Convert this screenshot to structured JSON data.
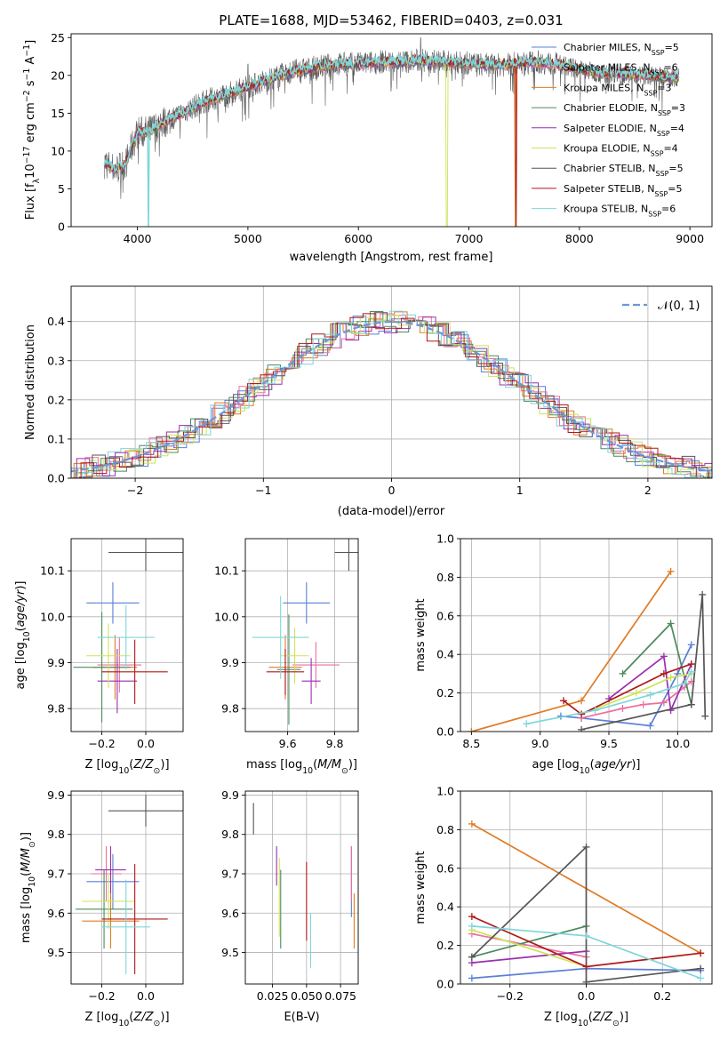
{
  "title": "PLATE=1688, MJD=53462, FIBERID=0403, z=0.031",
  "colors": {
    "chabrier_miles": "#5b7fd6",
    "salpeter_miles": "#ee6e9f",
    "kroupa_miles": "#e07b24",
    "chabrier_elodie": "#4a8b5c",
    "salpeter_elodie": "#9a2fb0",
    "kroupa_elodie": "#cde35a",
    "chabrier_stelib": "#555555",
    "salpeter_stelib": "#b01818",
    "kroupa_stelib": "#7fd6da",
    "normal": "#6a98d6"
  },
  "chart_data": [
    {
      "id": "spectrum",
      "type": "line",
      "title": "PLATE=1688, MJD=53462, FIBERID=0403, z=0.031",
      "xlabel": "wavelength [Angstrom, rest frame]",
      "ylabel": "Flux [f",
      "xlim": [
        3400,
        9200
      ],
      "ylim": [
        0,
        25.5
      ],
      "xticks": [
        4000,
        5000,
        6000,
        7000,
        8000,
        9000
      ],
      "yticks": [
        0,
        5,
        10,
        15,
        20,
        25
      ],
      "legend_position": "top-right",
      "legend": [
        {
          "name": "Chabrier MILES, N",
          "sub": "SSP",
          "val": "=5",
          "color": "#5b7fd6"
        },
        {
          "name": "Salpeter MILES, N",
          "sub": "SSP",
          "val": "=6",
          "color": "#ee6e9f"
        },
        {
          "name": "Kroupa MILES, N",
          "sub": "SSP",
          "val": "=3",
          "color": "#e07b24"
        },
        {
          "name": "Chabrier ELODIE, N",
          "sub": "SSP",
          "val": "=3",
          "color": "#4a8b5c"
        },
        {
          "name": "Salpeter ELODIE, N",
          "sub": "SSP",
          "val": "=4",
          "color": "#9a2fb0"
        },
        {
          "name": "Kroupa ELODIE, N",
          "sub": "SSP",
          "val": "=4",
          "color": "#cde35a"
        },
        {
          "name": "Chabrier STELIB, N",
          "sub": "SSP",
          "val": "=5",
          "color": "#555555"
        },
        {
          "name": "Salpeter STELIB, N",
          "sub": "SSP",
          "val": "=5",
          "color": "#b01818"
        },
        {
          "name": "Kroupa STELIB, N",
          "sub": "SSP",
          "val": "=6",
          "color": "#7fd6da"
        }
      ],
      "continuum": {
        "x": [
          3700,
          3800,
          3900,
          4000,
          4100,
          4200,
          4400,
          4600,
          4800,
          5000,
          5200,
          5400,
          5600,
          5800,
          6000,
          6200,
          6400,
          6600,
          6800,
          7000,
          7200,
          7400,
          7600,
          7800,
          8000,
          8200,
          8400,
          8600,
          8800
        ],
        "y": [
          8.5,
          7.5,
          8.5,
          12.5,
          12.5,
          13.5,
          15,
          16.5,
          17.5,
          18.5,
          19.5,
          20.5,
          21,
          21.5,
          21.5,
          21.8,
          21.8,
          22,
          21.7,
          21.6,
          21.3,
          21.5,
          21.8,
          21.5,
          20.8,
          20.3,
          20.3,
          20,
          19.7
        ]
      }
    },
    {
      "id": "residuals",
      "type": "step",
      "xlabel": "(data-model)/error",
      "ylabel": "Normed distribution",
      "xlim": [
        -2.5,
        2.5
      ],
      "ylim": [
        0,
        0.49
      ],
      "xticks": [
        -2,
        -1,
        0,
        1,
        2
      ],
      "yticks": [
        0.0,
        0.1,
        0.2,
        0.3,
        0.4
      ],
      "legend_position": "top-right",
      "normal_label": "𝒩(0, 1)"
    },
    {
      "id": "age_vs_Z",
      "type": "errorbar",
      "xlabel": "Z [log",
      "ylabel": "age  [log",
      "xlim": [
        -0.34,
        0.17
      ],
      "ylim": [
        9.75,
        10.17
      ],
      "xticks": [
        -0.2,
        0.0
      ],
      "yticks": [
        9.8,
        9.9,
        10.0,
        10.1
      ],
      "points": [
        {
          "x": -0.15,
          "xerr": 0.12,
          "y": 10.03,
          "yerr": 0.045,
          "color": "#5b7fd6"
        },
        {
          "x": -0.12,
          "xerr": 0.1,
          "y": 9.895,
          "yerr": 0.06,
          "color": "#ee6e9f"
        },
        {
          "x": -0.14,
          "xerr": 0.1,
          "y": 9.89,
          "yerr": 0.07,
          "color": "#e07b24"
        },
        {
          "x": -0.2,
          "xerr": 0.13,
          "y": 9.89,
          "yerr": 0.12,
          "color": "#4a8b5c"
        },
        {
          "x": -0.13,
          "xerr": 0.09,
          "y": 9.86,
          "yerr": 0.07,
          "color": "#9a2fb0"
        },
        {
          "x": -0.17,
          "xerr": 0.1,
          "y": 9.915,
          "yerr": 0.07,
          "color": "#cde35a"
        },
        {
          "x": 0.0,
          "xerr": 0.17,
          "y": 10.14,
          "yerr": 0.04,
          "color": "#555555"
        },
        {
          "x": -0.05,
          "xerr": 0.15,
          "y": 9.88,
          "yerr": 0.07,
          "color": "#b01818"
        },
        {
          "x": -0.09,
          "xerr": 0.13,
          "y": 9.955,
          "yerr": 0.07,
          "color": "#7fd6da"
        }
      ]
    },
    {
      "id": "age_vs_mass",
      "type": "errorbar",
      "xlabel": "mass [log",
      "ylabel": "",
      "xlim": [
        9.42,
        9.9
      ],
      "ylim": [
        9.75,
        10.17
      ],
      "xticks": [
        9.6,
        9.8
      ],
      "yticks": [
        9.8,
        9.9,
        10.0,
        10.1
      ],
      "points": [
        {
          "x": 9.68,
          "xerr": 0.1,
          "y": 10.03,
          "yerr": 0.045,
          "color": "#5b7fd6"
        },
        {
          "x": 9.72,
          "xerr": 0.1,
          "y": 9.895,
          "yerr": 0.05,
          "color": "#ee6e9f"
        },
        {
          "x": 9.59,
          "xerr": 0.07,
          "y": 9.89,
          "yerr": 0.07,
          "color": "#e07b24"
        },
        {
          "x": 9.605,
          "xerr": 0.05,
          "y": 9.885,
          "yerr": 0.12,
          "color": "#4a8b5c"
        },
        {
          "x": 9.7,
          "xerr": 0.04,
          "y": 9.86,
          "yerr": 0.05,
          "color": "#9a2fb0"
        },
        {
          "x": 9.63,
          "xerr": 0.06,
          "y": 9.915,
          "yerr": 0.06,
          "color": "#cde35a"
        },
        {
          "x": 9.86,
          "xerr": 0.06,
          "y": 10.14,
          "yerr": 0.04,
          "color": "#555555"
        },
        {
          "x": 9.59,
          "xerr": 0.08,
          "y": 9.88,
          "yerr": 0.05,
          "color": "#b01818"
        },
        {
          "x": 9.57,
          "xerr": 0.12,
          "y": 9.955,
          "yerr": 0.09,
          "color": "#7fd6da"
        }
      ]
    },
    {
      "id": "weight_vs_age",
      "type": "line",
      "xlabel": "age  [log",
      "ylabel": "mass weight",
      "xlim": [
        8.42,
        10.25
      ],
      "ylim": [
        0,
        1.0
      ],
      "xticks": [
        8.5,
        9.0,
        9.5,
        10.0
      ],
      "yticks": [
        0.0,
        0.2,
        0.4,
        0.6,
        0.8,
        1.0
      ],
      "series": [
        {
          "color": "#5b7fd6",
          "x": [
            9.15,
            9.3,
            9.8,
            10.0,
            10.1
          ],
          "y": [
            0.08,
            0.07,
            0.03,
            0.3,
            0.45
          ]
        },
        {
          "color": "#ee6e9f",
          "x": [
            9.3,
            9.6,
            9.75,
            9.9,
            10.05,
            10.1
          ],
          "y": [
            0.07,
            0.12,
            0.14,
            0.15,
            0.23,
            0.26
          ]
        },
        {
          "color": "#e07b24",
          "x": [
            8.5,
            9.3,
            9.95
          ],
          "y": [
            0.0,
            0.16,
            0.83
          ]
        },
        {
          "color": "#4a8b5c",
          "x": [
            9.6,
            9.95,
            10.1
          ],
          "y": [
            0.3,
            0.56,
            0.14
          ]
        },
        {
          "color": "#9a2fb0",
          "x": [
            9.5,
            9.9,
            9.95,
            10.1
          ],
          "y": [
            0.17,
            0.39,
            0.11,
            0.35
          ]
        },
        {
          "color": "#cde35a",
          "x": [
            9.3,
            9.7,
            9.95,
            10.1
          ],
          "y": [
            0.09,
            0.2,
            0.28,
            0.3
          ]
        },
        {
          "color": "#555555",
          "x": [
            9.3,
            10.1,
            10.18,
            10.2
          ],
          "y": [
            0.01,
            0.14,
            0.71,
            0.08
          ]
        },
        {
          "color": "#b01818",
          "x": [
            9.17,
            9.3,
            9.9,
            10.1
          ],
          "y": [
            0.16,
            0.09,
            0.3,
            0.35
          ]
        },
        {
          "color": "#7fd6da",
          "x": [
            8.9,
            9.4,
            9.8,
            10.05,
            10.1
          ],
          "y": [
            0.04,
            0.11,
            0.19,
            0.25,
            0.31
          ]
        }
      ]
    },
    {
      "id": "mass_vs_Z",
      "type": "errorbar",
      "xlabel": "Z [log",
      "ylabel": "mass [log",
      "xlim": [
        -0.34,
        0.17
      ],
      "ylim": [
        9.42,
        9.91
      ],
      "xticks": [
        -0.2,
        0.0
      ],
      "yticks": [
        9.5,
        9.6,
        9.7,
        9.8,
        9.9
      ],
      "points": [
        {
          "x": -0.15,
          "xerr": 0.12,
          "y": 9.68,
          "yerr": 0.07,
          "color": "#5b7fd6"
        },
        {
          "x": -0.18,
          "xerr": 0.07,
          "y": 9.7,
          "yerr": 0.07,
          "color": "#ee6e9f"
        },
        {
          "x": -0.16,
          "xerr": 0.13,
          "y": 9.58,
          "yerr": 0.07,
          "color": "#e07b24"
        },
        {
          "x": -0.19,
          "xerr": 0.13,
          "y": 9.61,
          "yerr": 0.1,
          "color": "#4a8b5c"
        },
        {
          "x": -0.16,
          "xerr": 0.07,
          "y": 9.71,
          "yerr": 0.06,
          "color": "#9a2fb0"
        },
        {
          "x": -0.17,
          "xerr": 0.12,
          "y": 9.63,
          "yerr": 0.07,
          "color": "#cde35a"
        },
        {
          "x": 0.0,
          "xerr": 0.17,
          "y": 9.86,
          "yerr": 0.04,
          "color": "#555555"
        },
        {
          "x": -0.05,
          "xerr": 0.15,
          "y": 9.585,
          "yerr": 0.14,
          "color": "#b01818"
        },
        {
          "x": -0.09,
          "xerr": 0.11,
          "y": 9.565,
          "yerr": 0.12,
          "color": "#7fd6da"
        }
      ]
    },
    {
      "id": "mass_vs_ebv",
      "type": "errorbar",
      "xlabel": "E(B-V)",
      "ylabel": "",
      "xlim": [
        0.005,
        0.088
      ],
      "ylim": [
        9.42,
        9.91
      ],
      "xticks": [
        0.025,
        0.05,
        0.075
      ],
      "xticklabels": [
        "0.025",
        "0.050",
        "0.075"
      ],
      "yticks": [
        9.5,
        9.6,
        9.7,
        9.8,
        9.9
      ],
      "points": [
        {
          "x": 0.083,
          "xerr": 0,
          "y": 9.68,
          "yerr": 0.09,
          "color": "#5b7fd6"
        },
        {
          "x": 0.083,
          "xerr": 0,
          "y": 9.7,
          "yerr": 0.07,
          "color": "#ee6e9f"
        },
        {
          "x": 0.085,
          "xerr": 0,
          "y": 9.58,
          "yerr": 0.07,
          "color": "#e07b24"
        },
        {
          "x": 0.031,
          "xerr": 0,
          "y": 9.61,
          "yerr": 0.1,
          "color": "#4a8b5c"
        },
        {
          "x": 0.028,
          "xerr": 0,
          "y": 9.72,
          "yerr": 0.05,
          "color": "#9a2fb0"
        },
        {
          "x": 0.03,
          "xerr": 0,
          "y": 9.64,
          "yerr": 0.1,
          "color": "#cde35a"
        },
        {
          "x": 0.011,
          "xerr": 0,
          "y": 9.84,
          "yerr": 0.04,
          "color": "#555555"
        },
        {
          "x": 0.05,
          "xerr": 0,
          "y": 9.63,
          "yerr": 0.1,
          "color": "#b01818"
        },
        {
          "x": 0.053,
          "xerr": 0,
          "y": 9.53,
          "yerr": 0.07,
          "color": "#7fd6da"
        }
      ]
    },
    {
      "id": "weight_vs_Z",
      "type": "line",
      "xlabel": "Z [log",
      "ylabel": "mass weight",
      "xlim": [
        -0.33,
        0.33
      ],
      "ylim": [
        0,
        1.0
      ],
      "xticks": [
        -0.2,
        0.0,
        0.2
      ],
      "yticks": [
        0.0,
        0.2,
        0.4,
        0.6,
        0.8,
        1.0
      ],
      "series": [
        {
          "color": "#5b7fd6",
          "x": [
            -0.3,
            0.0,
            0.3
          ],
          "y": [
            0.03,
            0.08,
            0.07
          ]
        },
        {
          "color": "#ee6e9f",
          "x": [
            -0.3,
            0.0
          ],
          "y": [
            0.26,
            0.14
          ]
        },
        {
          "color": "#e07b24",
          "x": [
            -0.3,
            0.3
          ],
          "y": [
            0.83,
            0.16
          ]
        },
        {
          "color": "#4a8b5c",
          "x": [
            -0.3,
            0.0
          ],
          "y": [
            0.14,
            0.3
          ]
        },
        {
          "color": "#9a2fb0",
          "x": [
            -0.3,
            0.0
          ],
          "y": [
            0.11,
            0.17
          ]
        },
        {
          "color": "#cde35a",
          "x": [
            -0.3,
            0.0
          ],
          "y": [
            0.28,
            0.09
          ]
        },
        {
          "color": "#555555",
          "x": [
            -0.3,
            0.0,
            0.0,
            0.3
          ],
          "y": [
            0.14,
            0.71,
            0.01,
            0.08
          ]
        },
        {
          "color": "#b01818",
          "x": [
            -0.3,
            0.0,
            0.3
          ],
          "y": [
            0.35,
            0.09,
            0.16
          ]
        },
        {
          "color": "#7fd6da",
          "x": [
            -0.3,
            0.0,
            0.3
          ],
          "y": [
            0.3,
            0.25,
            0.03
          ]
        }
      ]
    }
  ]
}
